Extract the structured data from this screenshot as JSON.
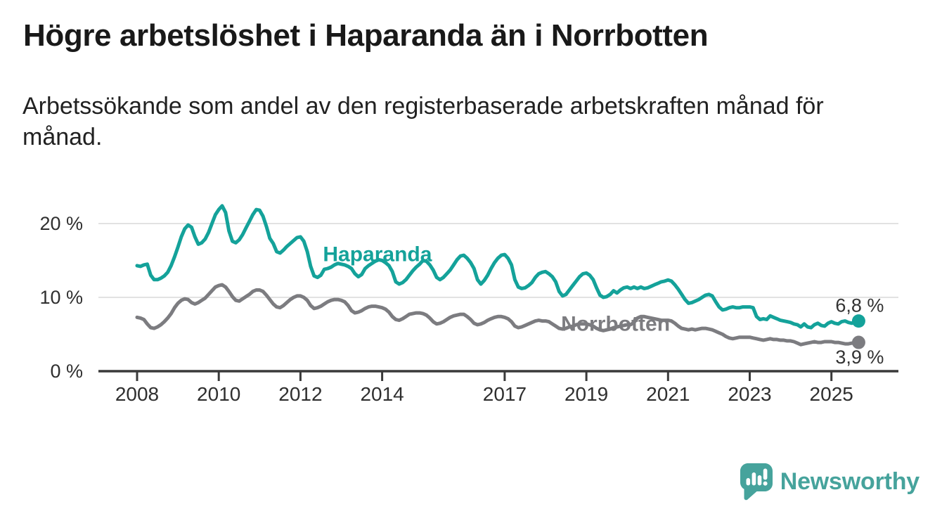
{
  "page": {
    "title": "Högre arbetslöshet i Haparanda än i Norrbotten",
    "subtitle": "Arbetssökande som andel av den registerbaserade arbetskraften månad för månad.",
    "subtitle_lines": [
      "Arbetssökande som andel av den registerbaserade arbetskraften månad för",
      "månad."
    ]
  },
  "footer": {
    "brand": "Newsworthy",
    "logo_icon": "newsworthy-speech-bubble-bar-chart-icon"
  },
  "chart_data": {
    "type": "line",
    "title": "Högre arbetslöshet i Haparanda än i Norrbotten",
    "subtitle": "Arbetssökande som andel av den registerbaserade arbetskraften månad för månad.",
    "unit": "%",
    "frequency": "monthly",
    "x_start_year": 2008,
    "x_start_month": 1,
    "x_end_year": 2025,
    "x_end_month": 9,
    "xlabel": "",
    "ylabel": "",
    "ylim": [
      0,
      23
    ],
    "grid": "horizontal-only",
    "legend": "inline-series-labels",
    "colors": {
      "haparanda": "#14a29a",
      "norrbotten": "#7c7c80",
      "axis": "#3a3a3a",
      "gridline": "#d9d9d9",
      "value_label": "#333333"
    },
    "y_ticks": [
      {
        "value": 0,
        "label": "0 %"
      },
      {
        "value": 10,
        "label": "10 %"
      },
      {
        "value": 20,
        "label": "20 %"
      }
    ],
    "x_ticks": [
      {
        "value": 2008,
        "label": "2008"
      },
      {
        "value": 2010,
        "label": "2010"
      },
      {
        "value": 2012,
        "label": "2012"
      },
      {
        "value": 2014,
        "label": "2014"
      },
      {
        "value": 2017,
        "label": "2017"
      },
      {
        "value": 2019,
        "label": "2019"
      },
      {
        "value": 2021,
        "label": "2021"
      },
      {
        "value": 2023,
        "label": "2023"
      },
      {
        "value": 2025,
        "label": "2025"
      }
    ],
    "series": [
      {
        "name": "Haparanda",
        "color": "#14a29a",
        "label_pos": {
          "x": 2012.55,
          "y": 14.9
        },
        "end_value": 6.8,
        "end_value_label": "6,8 %",
        "values": [
          14.3,
          14.2,
          14.4,
          14.5,
          13.0,
          12.4,
          12.4,
          12.6,
          12.9,
          13.4,
          14.3,
          15.5,
          16.8,
          18.2,
          19.3,
          19.8,
          19.5,
          18.2,
          17.2,
          17.4,
          17.9,
          18.8,
          20.0,
          21.2,
          21.9,
          22.4,
          21.5,
          19.0,
          17.6,
          17.4,
          17.8,
          18.5,
          19.4,
          20.3,
          21.2,
          21.9,
          21.8,
          21.0,
          19.6,
          18.0,
          17.3,
          16.2,
          16.0,
          16.4,
          16.9,
          17.3,
          17.7,
          18.1,
          18.2,
          17.6,
          16.2,
          14.2,
          12.9,
          12.7,
          13.0,
          13.8,
          13.9,
          14.1,
          14.4,
          14.6,
          14.5,
          14.4,
          14.2,
          13.9,
          13.2,
          12.8,
          13.1,
          13.9,
          14.3,
          14.6,
          14.9,
          15.1,
          15.0,
          14.7,
          14.3,
          13.5,
          12.1,
          11.8,
          12.0,
          12.4,
          13.0,
          13.6,
          14.1,
          14.5,
          15.0,
          14.9,
          14.4,
          13.7,
          12.7,
          12.4,
          12.7,
          13.2,
          13.7,
          14.4,
          15.1,
          15.6,
          15.7,
          15.3,
          14.7,
          13.9,
          12.4,
          11.8,
          12.3,
          13.0,
          13.9,
          14.7,
          15.3,
          15.7,
          15.8,
          15.3,
          14.4,
          12.4,
          11.4,
          11.2,
          11.3,
          11.6,
          12.0,
          12.7,
          13.2,
          13.4,
          13.5,
          13.2,
          12.8,
          12.1,
          10.8,
          10.2,
          10.4,
          11.0,
          11.6,
          12.2,
          12.8,
          13.2,
          13.3,
          13.0,
          12.4,
          11.3,
          10.3,
          10.0,
          10.1,
          10.4,
          10.9,
          10.6,
          11.0,
          11.3,
          11.4,
          11.2,
          11.4,
          11.2,
          11.4,
          11.2,
          11.3,
          11.5,
          11.7,
          11.9,
          12.1,
          12.2,
          12.35,
          12.2,
          11.7,
          11.1,
          10.4,
          9.7,
          9.2,
          9.3,
          9.5,
          9.7,
          10.0,
          10.3,
          10.4,
          10.2,
          9.4,
          8.7,
          8.3,
          8.4,
          8.6,
          8.7,
          8.6,
          8.6,
          8.7,
          8.7,
          8.7,
          8.6,
          7.4,
          7.0,
          7.1,
          7.0,
          7.5,
          7.3,
          7.1,
          6.9,
          6.8,
          6.7,
          6.6,
          6.4,
          6.3,
          6.0,
          6.4,
          6.0,
          5.9,
          6.3,
          6.5,
          6.2,
          6.1,
          6.5,
          6.7,
          6.5,
          6.4,
          6.7,
          6.8,
          6.6,
          6.5,
          6.7,
          6.8
        ]
      },
      {
        "name": "Norrbotten",
        "color": "#7c7c80",
        "label_pos": {
          "x": 2018.38,
          "y": 5.5
        },
        "end_value": 3.9,
        "end_value_label": "3,9 %",
        "values": [
          7.3,
          7.2,
          7.0,
          6.4,
          5.9,
          5.8,
          6.0,
          6.3,
          6.7,
          7.2,
          7.8,
          8.6,
          9.2,
          9.6,
          9.8,
          9.7,
          9.3,
          9.1,
          9.3,
          9.6,
          9.9,
          10.4,
          10.9,
          11.4,
          11.6,
          11.7,
          11.4,
          10.8,
          10.1,
          9.6,
          9.5,
          9.8,
          10.1,
          10.4,
          10.8,
          11.0,
          11.0,
          10.8,
          10.3,
          9.7,
          9.1,
          8.7,
          8.6,
          8.9,
          9.3,
          9.7,
          10.0,
          10.2,
          10.2,
          10.0,
          9.6,
          8.9,
          8.5,
          8.6,
          8.8,
          9.1,
          9.4,
          9.6,
          9.7,
          9.7,
          9.6,
          9.4,
          8.9,
          8.2,
          7.9,
          8.0,
          8.2,
          8.5,
          8.7,
          8.8,
          8.8,
          8.7,
          8.6,
          8.4,
          8.0,
          7.4,
          7.0,
          6.9,
          7.1,
          7.4,
          7.7,
          7.8,
          7.9,
          7.9,
          7.8,
          7.6,
          7.2,
          6.7,
          6.4,
          6.5,
          6.7,
          7.0,
          7.3,
          7.5,
          7.6,
          7.7,
          7.7,
          7.4,
          7.0,
          6.5,
          6.3,
          6.4,
          6.6,
          6.9,
          7.1,
          7.3,
          7.4,
          7.4,
          7.3,
          7.1,
          6.7,
          6.1,
          5.9,
          6.0,
          6.2,
          6.4,
          6.6,
          6.8,
          6.9,
          6.8,
          6.8,
          6.7,
          6.4,
          6.1,
          5.8,
          5.7,
          5.8,
          6.0,
          6.1,
          6.3,
          6.4,
          6.4,
          6.4,
          6.3,
          6.1,
          5.8,
          5.6,
          5.5,
          5.6,
          5.7,
          5.9,
          6.0,
          6.1,
          6.2,
          6.3,
          6.3,
          6.6,
          7.2,
          7.4,
          7.4,
          7.3,
          7.2,
          7.1,
          7.0,
          6.9,
          6.9,
          6.9,
          6.8,
          6.5,
          6.1,
          5.8,
          5.7,
          5.6,
          5.7,
          5.6,
          5.7,
          5.8,
          5.8,
          5.7,
          5.6,
          5.4,
          5.2,
          5.0,
          4.7,
          4.5,
          4.4,
          4.5,
          4.6,
          4.6,
          4.6,
          4.6,
          4.5,
          4.4,
          4.3,
          4.2,
          4.3,
          4.4,
          4.3,
          4.3,
          4.2,
          4.2,
          4.1,
          4.1,
          4.0,
          3.8,
          3.6,
          3.7,
          3.8,
          3.9,
          4.0,
          3.9,
          3.9,
          4.0,
          4.0,
          4.0,
          3.9,
          3.9,
          3.8,
          3.7,
          3.7,
          3.8,
          3.8,
          3.9
        ]
      }
    ]
  }
}
